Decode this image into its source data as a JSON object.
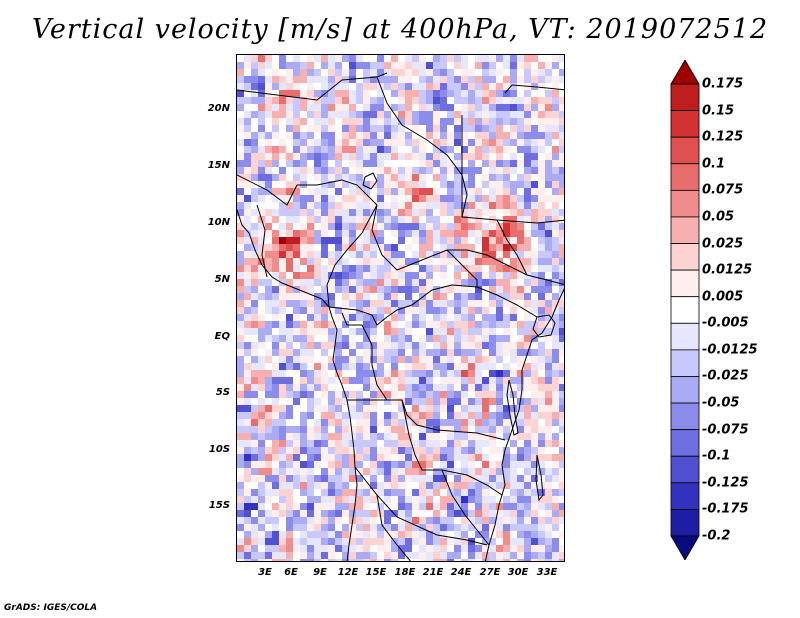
{
  "title": "Vertical velocity [m/s] at 400hPa, VT: 2019072512",
  "credit": "GrADS: IGES/COLA",
  "map": {
    "lat_labels": [
      "20N",
      "15N",
      "10N",
      "5N",
      "EQ",
      "5S",
      "10S",
      "15S"
    ],
    "lon_labels": [
      "3E",
      "6E",
      "9E",
      "12E",
      "15E",
      "18E",
      "21E",
      "24E",
      "27E",
      "30E",
      "33E"
    ]
  },
  "colorbar": {
    "levels": [
      "0.175",
      "0.15",
      "0.125",
      "0.1",
      "0.075",
      "0.05",
      "0.025",
      "0.0125",
      "0.005",
      "-0.005",
      "-0.0125",
      "-0.025",
      "-0.05",
      "-0.075",
      "-0.1",
      "-0.125",
      "-0.175",
      "-0.2"
    ],
    "colors": [
      "#a00000",
      "#be1e1e",
      "#d23232",
      "#e05050",
      "#e86e6e",
      "#f08c8c",
      "#f8afaf",
      "#fcd2d2",
      "#ffeeee",
      "#ffffff",
      "#e6e6ff",
      "#c8c8ff",
      "#aaaaf5",
      "#8c8cec",
      "#6e6ee0",
      "#5050d0",
      "#3232be",
      "#1e1ea5",
      "#0a0a80"
    ]
  }
}
